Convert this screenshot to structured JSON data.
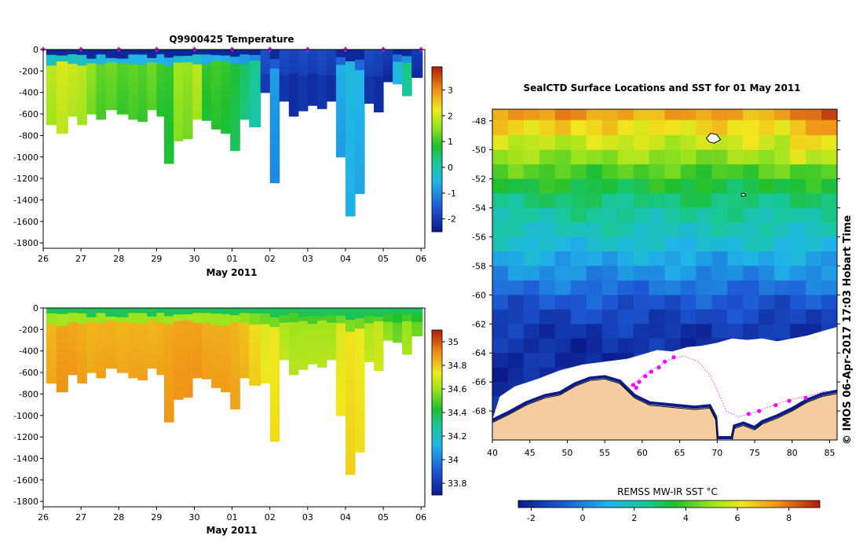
{
  "colors": {
    "ice": "#ffffff",
    "land": "#f5cca0",
    "coast": "#000000",
    "track": "#ff00ff",
    "marker": "#e020e0"
  },
  "chart_data": [
    {
      "id": "temperature_section",
      "type": "heatmap",
      "title": "Q9900425  Temperature",
      "xlabel": "May 2011",
      "ylabel": "",
      "x_ticks": [
        "26",
        "27",
        "28",
        "29",
        "30",
        "01",
        "02",
        "03",
        "04",
        "05",
        "06"
      ],
      "y_ticks": [
        "0",
        "-200",
        "-400",
        "-600",
        "-800",
        "-1000",
        "-1200",
        "-1400",
        "-1600",
        "-1800"
      ],
      "ylim": [
        -1850,
        0
      ],
      "xlim": [
        26,
        36.1
      ],
      "colorbar": {
        "min": -2.5,
        "max": 3.9,
        "ticks": [
          "-2",
          "-1",
          "0",
          "1",
          "2",
          "3"
        ]
      },
      "profiles": [
        {
          "x": 26.2,
          "depth": 700,
          "value": 1.9
        },
        {
          "x": 26.5,
          "depth": 780,
          "value": 2.1
        },
        {
          "x": 26.8,
          "depth": 620,
          "value": 2.0
        },
        {
          "x": 27.0,
          "depth": 700,
          "value": 1.9
        },
        {
          "x": 27.3,
          "depth": 600,
          "value": 1.6
        },
        {
          "x": 27.5,
          "depth": 650,
          "value": 1.3
        },
        {
          "x": 27.8,
          "depth": 560,
          "value": 1.4
        },
        {
          "x": 28.1,
          "depth": 600,
          "value": 1.2
        },
        {
          "x": 28.4,
          "depth": 650,
          "value": 1.3
        },
        {
          "x": 28.6,
          "depth": 670,
          "value": 1.2
        },
        {
          "x": 28.9,
          "depth": 560,
          "value": 1.4
        },
        {
          "x": 29.1,
          "depth": 620,
          "value": 1.1
        },
        {
          "x": 29.3,
          "depth": 1060,
          "value": 1.0
        },
        {
          "x": 29.6,
          "depth": 850,
          "value": 1.7
        },
        {
          "x": 29.8,
          "depth": 830,
          "value": 1.6
        },
        {
          "x": 30.1,
          "depth": 650,
          "value": 1.9
        },
        {
          "x": 30.3,
          "depth": 660,
          "value": 1.0
        },
        {
          "x": 30.6,
          "depth": 740,
          "value": 1.1
        },
        {
          "x": 30.8,
          "depth": 780,
          "value": 1.0
        },
        {
          "x": 31.1,
          "depth": 940,
          "value": 0.8
        },
        {
          "x": 31.3,
          "depth": 650,
          "value": 0.6
        },
        {
          "x": 31.6,
          "depth": 720,
          "value": 0.3
        },
        {
          "x": 31.9,
          "depth": 400,
          "value": -2.0
        },
        {
          "x": 32.1,
          "depth": 1240,
          "value": -0.8
        },
        {
          "x": 32.4,
          "depth": 480,
          "value": -2.1
        },
        {
          "x": 32.6,
          "depth": 620,
          "value": -2.2
        },
        {
          "x": 32.9,
          "depth": 570,
          "value": -2.1
        },
        {
          "x": 33.1,
          "depth": 520,
          "value": -2.2
        },
        {
          "x": 33.4,
          "depth": 550,
          "value": -2.1
        },
        {
          "x": 33.6,
          "depth": 480,
          "value": -2.2
        },
        {
          "x": 33.9,
          "depth": 1000,
          "value": -0.6
        },
        {
          "x": 34.1,
          "depth": 1550,
          "value": -0.4
        },
        {
          "x": 34.4,
          "depth": 1340,
          "value": -0.5
        },
        {
          "x": 34.6,
          "depth": 500,
          "value": -2.1
        },
        {
          "x": 34.9,
          "depth": 580,
          "value": -2.2
        },
        {
          "x": 35.1,
          "depth": 300,
          "value": -2.3
        },
        {
          "x": 35.4,
          "depth": 320,
          "value": -0.3
        },
        {
          "x": 35.6,
          "depth": 430,
          "value": 0.4
        },
        {
          "x": 35.9,
          "depth": 260,
          "value": -2.3
        }
      ],
      "surface_markers_x": [
        26.0,
        27.0,
        28.0,
        29.0,
        30.0,
        31.0,
        32.0,
        33.0,
        34.0,
        35.0,
        36.0
      ]
    },
    {
      "id": "salinity_section",
      "type": "heatmap",
      "title": "",
      "xlabel": "May 2011",
      "ylabel": "",
      "x_ticks": [
        "26",
        "27",
        "28",
        "29",
        "30",
        "01",
        "02",
        "03",
        "04",
        "05",
        "06"
      ],
      "y_ticks": [
        "0",
        "-200",
        "-400",
        "-600",
        "-800",
        "-1000",
        "-1200",
        "-1400",
        "-1600",
        "-1800"
      ],
      "ylim": [
        -1850,
        0
      ],
      "xlim": [
        26,
        36.1
      ],
      "colorbar": {
        "min": 33.7,
        "max": 35.1,
        "ticks": [
          "35",
          "34.8",
          "34.6",
          "34.4",
          "34.2",
          "34",
          "33.8"
        ]
      },
      "profiles": [
        {
          "x": 26.2,
          "depth": 700,
          "value": 34.82
        },
        {
          "x": 26.5,
          "depth": 780,
          "value": 34.86
        },
        {
          "x": 26.8,
          "depth": 620,
          "value": 34.85
        },
        {
          "x": 27.0,
          "depth": 700,
          "value": 34.84
        },
        {
          "x": 27.3,
          "depth": 600,
          "value": 34.82
        },
        {
          "x": 27.5,
          "depth": 650,
          "value": 34.83
        },
        {
          "x": 27.8,
          "depth": 560,
          "value": 34.83
        },
        {
          "x": 28.1,
          "depth": 600,
          "value": 34.82
        },
        {
          "x": 28.4,
          "depth": 650,
          "value": 34.83
        },
        {
          "x": 28.6,
          "depth": 670,
          "value": 34.83
        },
        {
          "x": 28.9,
          "depth": 560,
          "value": 34.82
        },
        {
          "x": 29.1,
          "depth": 620,
          "value": 34.83
        },
        {
          "x": 29.3,
          "depth": 1060,
          "value": 34.85
        },
        {
          "x": 29.6,
          "depth": 850,
          "value": 34.86
        },
        {
          "x": 29.8,
          "depth": 830,
          "value": 34.86
        },
        {
          "x": 30.1,
          "depth": 650,
          "value": 34.86
        },
        {
          "x": 30.3,
          "depth": 660,
          "value": 34.84
        },
        {
          "x": 30.6,
          "depth": 740,
          "value": 34.84
        },
        {
          "x": 30.8,
          "depth": 780,
          "value": 34.84
        },
        {
          "x": 31.1,
          "depth": 940,
          "value": 34.83
        },
        {
          "x": 31.3,
          "depth": 650,
          "value": 34.8
        },
        {
          "x": 31.6,
          "depth": 720,
          "value": 34.75
        },
        {
          "x": 31.9,
          "depth": 700,
          "value": 34.7
        },
        {
          "x": 32.1,
          "depth": 1240,
          "value": 34.72
        },
        {
          "x": 32.4,
          "depth": 480,
          "value": 34.62
        },
        {
          "x": 32.6,
          "depth": 620,
          "value": 34.6
        },
        {
          "x": 32.9,
          "depth": 570,
          "value": 34.6
        },
        {
          "x": 33.1,
          "depth": 520,
          "value": 34.6
        },
        {
          "x": 33.4,
          "depth": 550,
          "value": 34.6
        },
        {
          "x": 33.6,
          "depth": 480,
          "value": 34.6
        },
        {
          "x": 33.9,
          "depth": 1000,
          "value": 34.7
        },
        {
          "x": 34.1,
          "depth": 1550,
          "value": 34.74
        },
        {
          "x": 34.4,
          "depth": 1340,
          "value": 34.72
        },
        {
          "x": 34.6,
          "depth": 500,
          "value": 34.62
        },
        {
          "x": 34.9,
          "depth": 580,
          "value": 34.65
        },
        {
          "x": 35.1,
          "depth": 300,
          "value": 34.55
        },
        {
          "x": 35.4,
          "depth": 320,
          "value": 34.5
        },
        {
          "x": 35.6,
          "depth": 430,
          "value": 34.58
        },
        {
          "x": 35.9,
          "depth": 260,
          "value": 34.5
        }
      ]
    },
    {
      "id": "sst_map",
      "type": "heatmap",
      "title": "SealCTD Surface Locations and SST for 01 May 2011",
      "xlabel": "",
      "ylabel": "",
      "x_ticks": [
        "40",
        "45",
        "50",
        "55",
        "60",
        "65",
        "70",
        "75",
        "80",
        "85"
      ],
      "y_ticks": [
        "-48",
        "-50",
        "-52",
        "-54",
        "-56",
        "-58",
        "-60",
        "-62",
        "-64",
        "-66",
        "-68"
      ],
      "xlim": [
        40,
        86
      ],
      "ylim": [
        -70,
        -47.2
      ],
      "colorbar_label": "REMSS MW-IR SST °C",
      "colorbar": {
        "min": -2.5,
        "max": 9.2,
        "ticks": [
          "-2",
          "0",
          "2",
          "4",
          "6",
          "8"
        ]
      },
      "sst_by_latitude": [
        {
          "lat": -47.4,
          "value": 7.2
        },
        {
          "lat": -48.5,
          "value": 6.3
        },
        {
          "lat": -49.5,
          "value": 5.6
        },
        {
          "lat": -50.5,
          "value": 4.9
        },
        {
          "lat": -51.5,
          "value": 4.1
        },
        {
          "lat": -52.5,
          "value": 3.4
        },
        {
          "lat": -53.5,
          "value": 2.8
        },
        {
          "lat": -54.5,
          "value": 2.3
        },
        {
          "lat": -55.5,
          "value": 1.9
        },
        {
          "lat": -56.5,
          "value": 1.4
        },
        {
          "lat": -57.5,
          "value": 0.8
        },
        {
          "lat": -58.5,
          "value": 0.3
        },
        {
          "lat": -59.5,
          "value": -0.3
        },
        {
          "lat": -60.5,
          "value": -0.9
        },
        {
          "lat": -61.5,
          "value": -1.3
        },
        {
          "lat": -62.5,
          "value": -1.7
        },
        {
          "lat": -63.5,
          "value": -1.9
        },
        {
          "lat": -64.5,
          "value": -2.0
        },
        {
          "lat": -65.5,
          "value": -2.0
        },
        {
          "lat": -66.5,
          "value": -2.0
        },
        {
          "lat": -67.5,
          "value": -2.0
        },
        {
          "lat": -68.5,
          "value": -2.0
        },
        {
          "lat": -69.5,
          "value": -2.0
        }
      ],
      "seal_locations": [
        {
          "lon": 58.8,
          "lat": -66.2
        },
        {
          "lon": 59.2,
          "lat": -66.4
        },
        {
          "lon": 59.6,
          "lat": -66.0
        },
        {
          "lon": 60.4,
          "lat": -65.6
        },
        {
          "lon": 61.2,
          "lat": -65.3
        },
        {
          "lon": 62.2,
          "lat": -65.0
        },
        {
          "lon": 63.0,
          "lat": -64.6
        },
        {
          "lon": 64.2,
          "lat": -64.3
        },
        {
          "lon": 74.2,
          "lat": -68.2
        },
        {
          "lon": 75.6,
          "lat": -68.0
        },
        {
          "lon": 77.8,
          "lat": -67.6
        },
        {
          "lon": 79.6,
          "lat": -67.3
        },
        {
          "lon": 81.8,
          "lat": -67.1
        }
      ],
      "seal_track": [
        {
          "lon": 58.4,
          "lat": -66.3
        },
        {
          "lon": 60.0,
          "lat": -65.6
        },
        {
          "lon": 61.5,
          "lat": -65.1
        },
        {
          "lon": 63.5,
          "lat": -64.5
        },
        {
          "lon": 65.5,
          "lat": -64.2
        },
        {
          "lon": 67.5,
          "lat": -64.6
        },
        {
          "lon": 69.0,
          "lat": -65.5
        },
        {
          "lon": 70.2,
          "lat": -66.8
        },
        {
          "lon": 71.2,
          "lat": -68.0
        },
        {
          "lon": 72.8,
          "lat": -68.4
        },
        {
          "lon": 75.0,
          "lat": -68.1
        },
        {
          "lon": 77.5,
          "lat": -67.6
        },
        {
          "lon": 80.0,
          "lat": -67.2
        },
        {
          "lon": 82.5,
          "lat": -66.9
        },
        {
          "lon": 84.5,
          "lat": -66.6
        }
      ],
      "ice_edge": [
        {
          "lon": 40.0,
          "lat": -68.6
        },
        {
          "lon": 41.0,
          "lat": -67.0
        },
        {
          "lon": 43.0,
          "lat": -66.3
        },
        {
          "lon": 46.0,
          "lat": -65.8
        },
        {
          "lon": 49.0,
          "lat": -65.2
        },
        {
          "lon": 52.0,
          "lat": -64.8
        },
        {
          "lon": 55.0,
          "lat": -64.6
        },
        {
          "lon": 58.0,
          "lat": -64.4
        },
        {
          "lon": 60.0,
          "lat": -64.1
        },
        {
          "lon": 62.0,
          "lat": -63.8
        },
        {
          "lon": 64.0,
          "lat": -63.9
        },
        {
          "lon": 66.0,
          "lat": -63.6
        },
        {
          "lon": 68.0,
          "lat": -63.5
        },
        {
          "lon": 70.0,
          "lat": -63.3
        },
        {
          "lon": 72.0,
          "lat": -63.0
        },
        {
          "lon": 74.0,
          "lat": -63.1
        },
        {
          "lon": 76.0,
          "lat": -63.0
        },
        {
          "lon": 78.0,
          "lat": -63.2
        },
        {
          "lon": 80.0,
          "lat": -63.0
        },
        {
          "lon": 82.0,
          "lat": -62.8
        },
        {
          "lon": 84.0,
          "lat": -62.5
        },
        {
          "lon": 86.0,
          "lat": -62.2
        }
      ],
      "coast": [
        {
          "lon": 40.0,
          "lat": -68.8
        },
        {
          "lon": 42.0,
          "lat": -68.3
        },
        {
          "lon": 44.5,
          "lat": -67.6
        },
        {
          "lon": 47.0,
          "lat": -67.1
        },
        {
          "lon": 49.0,
          "lat": -66.9
        },
        {
          "lon": 51.0,
          "lat": -66.3
        },
        {
          "lon": 53.0,
          "lat": -65.9
        },
        {
          "lon": 55.0,
          "lat": -65.8
        },
        {
          "lon": 57.0,
          "lat": -66.1
        },
        {
          "lon": 59.0,
          "lat": -67.1
        },
        {
          "lon": 61.0,
          "lat": -67.6
        },
        {
          "lon": 63.0,
          "lat": -67.7
        },
        {
          "lon": 65.0,
          "lat": -67.8
        },
        {
          "lon": 67.0,
          "lat": -67.9
        },
        {
          "lon": 69.0,
          "lat": -67.8
        },
        {
          "lon": 69.8,
          "lat": -68.6
        },
        {
          "lon": 70.0,
          "lat": -70.0
        },
        {
          "lon": 72.0,
          "lat": -70.0
        },
        {
          "lon": 72.3,
          "lat": -69.2
        },
        {
          "lon": 73.5,
          "lat": -69.0
        },
        {
          "lon": 75.0,
          "lat": -69.3
        },
        {
          "lon": 76.0,
          "lat": -68.9
        },
        {
          "lon": 78.0,
          "lat": -68.5
        },
        {
          "lon": 80.0,
          "lat": -68.0
        },
        {
          "lon": 82.0,
          "lat": -67.4
        },
        {
          "lon": 84.0,
          "lat": -67.0
        },
        {
          "lon": 86.0,
          "lat": -66.8
        }
      ],
      "islands": [
        {
          "lon": 69.5,
          "lat": -49.2
        },
        {
          "lon": 73.5,
          "lat": -53.1
        }
      ]
    }
  ],
  "credit": "© IMOS 06-Apr-2017 17:03 Hobart Time"
}
